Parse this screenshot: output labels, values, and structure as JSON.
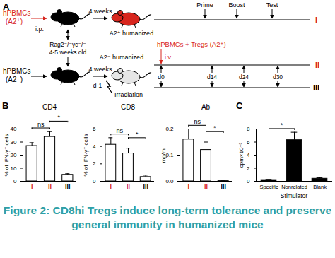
{
  "caption": "Figure 2: CD8hi Tregs induce long-term tolerance and preserve general immunity in humanized mice",
  "panel_a": {
    "label": "A",
    "row1": {
      "source": "hPBMCs",
      "source_type": "(A2⁺)",
      "route": "i.p.",
      "interval": "4 weeks",
      "result": "A2⁺ humanized",
      "timepoints": [
        "Prime",
        "Boost",
        "Test"
      ],
      "group": "I"
    },
    "host": {
      "strain": "Rag2⁻/⁻γc⁻/⁻",
      "age": "4-5 weeks old"
    },
    "row2": {
      "source": "hPBMCs",
      "source_type": "(A2⁻)",
      "interval": "4 weeks",
      "result": "A2⁻ humanized",
      "treatment": "Irradiation",
      "treatment_day": "d-1",
      "transfer": "hPBMCs + Tregs (A2⁺)",
      "route": "i.v.",
      "days": [
        "d0",
        "d14",
        "d24",
        "d30"
      ],
      "groups": [
        "II",
        "III"
      ]
    }
  },
  "chart_data": [
    {
      "type": "bar",
      "panel_label": "B",
      "title": "CD4",
      "y_label": "% of IFN-γ⁺ cells",
      "categories": [
        "I",
        "II",
        "III"
      ],
      "values": [
        27,
        34,
        5
      ],
      "errors": [
        2.5,
        4,
        0.8
      ],
      "color": "#ffffff",
      "ylim": [
        0,
        40
      ],
      "yticks": [
        0,
        10,
        20,
        30,
        40
      ],
      "annotations": [
        {
          "text": "ns",
          "from": "I",
          "to": "II"
        },
        {
          "text": "*",
          "from": "II",
          "to": "III"
        }
      ]
    },
    {
      "type": "bar",
      "title": "CD8",
      "y_label": "% of IFN-γ⁺ cells",
      "categories": [
        "I",
        "II",
        "III"
      ],
      "values": [
        4.2,
        3.2,
        0.5
      ],
      "errors": [
        0.8,
        0.6,
        0.2
      ],
      "color": "#ffffff",
      "ylim": [
        0,
        6
      ],
      "yticks": [
        0,
        2,
        4,
        6
      ],
      "annotations": [
        {
          "text": "ns",
          "from": "I",
          "to": "II"
        },
        {
          "text": "*",
          "from": "II",
          "to": "III"
        }
      ]
    },
    {
      "type": "bar",
      "title": "Ab",
      "y_label": "mg/ml",
      "categories": [
        "I",
        "II",
        "III"
      ],
      "values": [
        0.16,
        0.12,
        0.003
      ],
      "errors": [
        0.04,
        0.03,
        0.001
      ],
      "color": "#ffffff",
      "ylim": [
        0,
        0.2
      ],
      "yticks": [
        {
          "value": 0,
          "label": "0.0"
        },
        0.1,
        0.2
      ],
      "annotations": [
        {
          "text": "ns",
          "from": "I",
          "to": "II"
        },
        {
          "text": "*",
          "from": "II",
          "to": "III"
        }
      ]
    },
    {
      "type": "bar",
      "panel_label": "C",
      "y_label": "cpm×10⁻³",
      "x_label": "Stimulator",
      "categories": [
        "Specific",
        "Nonrelated",
        "Blank"
      ],
      "values": [
        0.2,
        6.3,
        0.4
      ],
      "errors": [
        0.1,
        1.2,
        0.15
      ],
      "color": "#000000",
      "ylim": [
        0,
        8
      ],
      "yticks": [
        0,
        2,
        4,
        6,
        8
      ],
      "annotations": [
        {
          "text": "*",
          "from": "Specific",
          "to": "Nonrelated"
        }
      ]
    }
  ]
}
